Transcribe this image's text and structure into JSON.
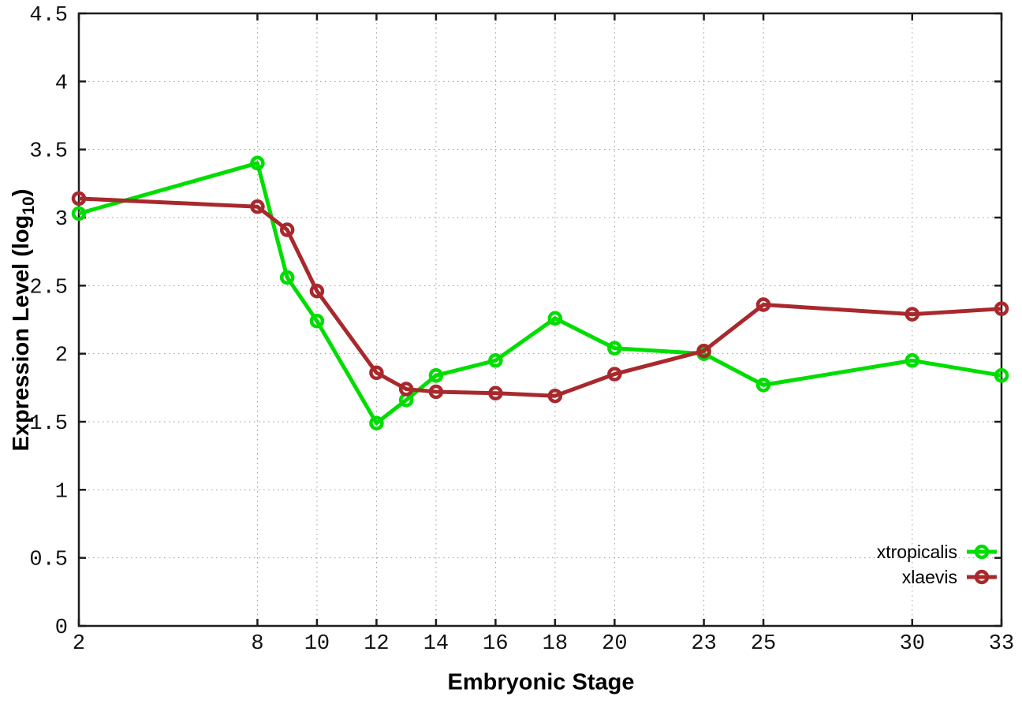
{
  "chart_data": {
    "type": "line",
    "title": "",
    "xlabel": "Embryonic Stage",
    "ylabel_pre": "Expression Level (log",
    "ylabel_sub": "10",
    "ylabel_post": ")",
    "x": [
      2,
      8,
      9,
      10,
      12,
      13,
      14,
      16,
      18,
      20,
      23,
      25,
      30,
      33
    ],
    "series": [
      {
        "name": "xtropicalis",
        "color": "#00dd00",
        "values": [
          3.03,
          3.4,
          2.56,
          2.24,
          1.49,
          1.66,
          1.84,
          1.95,
          2.26,
          2.04,
          2.0,
          1.77,
          1.95,
          1.84
        ]
      },
      {
        "name": "xlaevis",
        "color": "#a8292d",
        "values": [
          3.14,
          3.08,
          2.91,
          2.46,
          1.86,
          1.74,
          1.72,
          1.71,
          1.69,
          1.85,
          2.02,
          2.36,
          2.29,
          2.33
        ]
      }
    ],
    "xticks": [
      2,
      8,
      10,
      12,
      14,
      16,
      18,
      20,
      23,
      25,
      30,
      33
    ],
    "yticks": [
      0,
      0.5,
      1,
      1.5,
      2,
      2.5,
      3,
      3.5,
      4,
      4.5
    ],
    "xlim": [
      2,
      33
    ],
    "ylim": [
      0,
      4.5
    ],
    "grid": true,
    "legend_position": "inside-bottom-right",
    "marker": "open-circle",
    "colors": {
      "axis": "#1c1c1c",
      "grid": "#9a9a9a",
      "tick_text": "#111111",
      "background": "#ffffff"
    }
  }
}
